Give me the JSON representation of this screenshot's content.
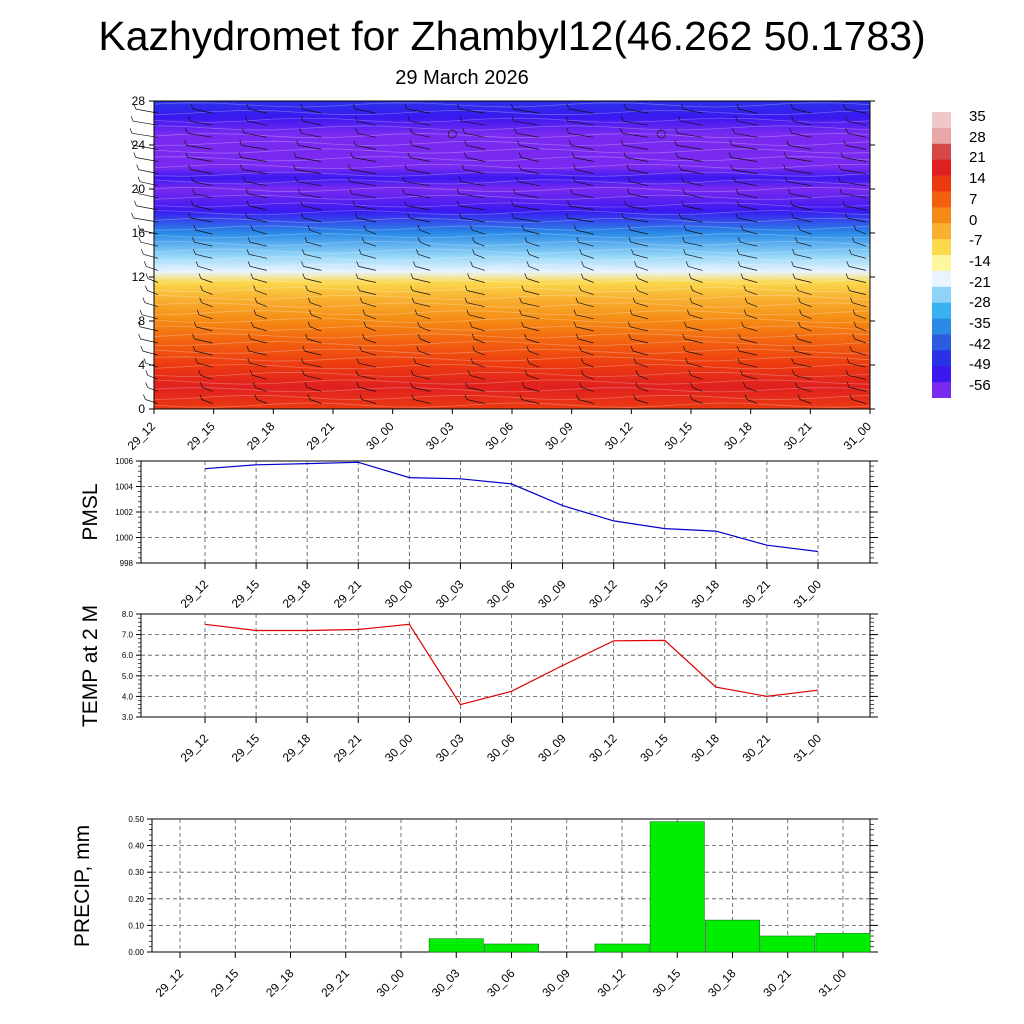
{
  "page": {
    "title": "Kazhydromet for Zhambyl12(46.262 50.1783)",
    "subtitle": "29 March 2026"
  },
  "colors": {
    "pmsl_line": "#0000cc",
    "temp_line": "#dd0000",
    "precip_bar": "#00ee00",
    "precip_edge": "#117711",
    "grid": "#555555"
  },
  "time_labels": [
    "29_12",
    "29_15",
    "29_18",
    "29_21",
    "30_00",
    "30_03",
    "30_06",
    "30_09",
    "30_12",
    "30_15",
    "30_18",
    "30_21",
    "31_00"
  ],
  "colorbar": {
    "labels": [
      "35",
      "28",
      "21",
      "14",
      "7",
      "0",
      "-7",
      "-14",
      "-21",
      "-28",
      "-35",
      "-42",
      "-49",
      "-56"
    ],
    "colors": [
      "#f0c8c8",
      "#e8a6a6",
      "#d64848",
      "#e02020",
      "#ec3a10",
      "#f26010",
      "#f58a14",
      "#f8b030",
      "#fbd84c",
      "#fff6a0",
      "#e8f4ff",
      "#8fd4f8",
      "#38b2f0",
      "#2a8ae6",
      "#2c5ce0",
      "#2a32e8",
      "#3a18f0",
      "#7a2af0"
    ]
  },
  "chart_data": [
    {
      "id": "height-time-section",
      "type": "heatmap",
      "title": "Kazhydromet for Zhambyl12(46.262 50.1783)",
      "subtitle": "29 March 2026",
      "x": [
        "29_12",
        "29_15",
        "29_18",
        "29_21",
        "30_00",
        "30_03",
        "30_06",
        "30_09",
        "30_12",
        "30_15",
        "30_18",
        "30_21",
        "31_00"
      ],
      "xlabel": "",
      "ylabel": "",
      "ylim": [
        0,
        28
      ],
      "yticks": [
        "0",
        "4",
        "8",
        "12",
        "16",
        "20",
        "24",
        "28"
      ],
      "z_description": "temperature (color, C) by height with wind barbs",
      "height_levels": [
        0,
        2,
        4,
        6,
        8,
        10,
        11.5,
        12.5,
        14,
        16,
        18,
        20,
        21,
        22,
        23.5,
        25,
        26.5,
        28
      ],
      "temperature_by_level": [
        14,
        17,
        15,
        10,
        5,
        0,
        -7,
        -18,
        -26,
        -35,
        -48,
        -55,
        -52,
        -58,
        -58,
        -54,
        -48,
        -43
      ]
    },
    {
      "id": "pmsl",
      "type": "line",
      "ylabel": "PMSL",
      "x": [
        "29_12",
        "29_15",
        "29_18",
        "29_21",
        "30_00",
        "30_03",
        "30_06",
        "30_09",
        "30_12",
        "30_15",
        "30_18",
        "30_21",
        "31_00"
      ],
      "values": [
        1005.4,
        1005.7,
        1005.8,
        1005.9,
        1004.7,
        1004.6,
        1004.2,
        1002.5,
        1001.3,
        1000.7,
        1000.5,
        999.4,
        998.9
      ],
      "ylim": [
        998,
        1006
      ],
      "yticks": [
        "998",
        "1000",
        "1002",
        "1004",
        "1006"
      ]
    },
    {
      "id": "temp2m",
      "type": "line",
      "ylabel": "TEMP at 2 M",
      "x": [
        "29_12",
        "29_15",
        "29_18",
        "29_21",
        "30_00",
        "30_03",
        "30_06",
        "30_09",
        "30_12",
        "30_15",
        "30_18",
        "30_21",
        "31_00"
      ],
      "values": [
        7.5,
        7.2,
        7.2,
        7.25,
        7.5,
        3.6,
        4.25,
        5.5,
        6.7,
        6.72,
        4.45,
        4.0,
        4.3
      ],
      "ylim": [
        3.0,
        8.0
      ],
      "yticks": [
        "3.0",
        "4.0",
        "5.0",
        "6.0",
        "7.0",
        "8.0"
      ]
    },
    {
      "id": "precip",
      "type": "bar",
      "ylabel": "PRECIP, mm",
      "x": [
        "29_12",
        "29_15",
        "29_18",
        "29_21",
        "30_00",
        "30_03",
        "30_06",
        "30_09",
        "30_12",
        "30_15",
        "30_18",
        "30_21",
        "31_00"
      ],
      "values": [
        0,
        0,
        0,
        0,
        0,
        0.05,
        0.03,
        0,
        0.03,
        0.49,
        0.12,
        0.06,
        0.07
      ],
      "ylim": [
        0,
        0.5
      ],
      "yticks": [
        "0.00",
        "0.10",
        "0.20",
        "0.30",
        "0.40",
        "0.50"
      ]
    }
  ]
}
